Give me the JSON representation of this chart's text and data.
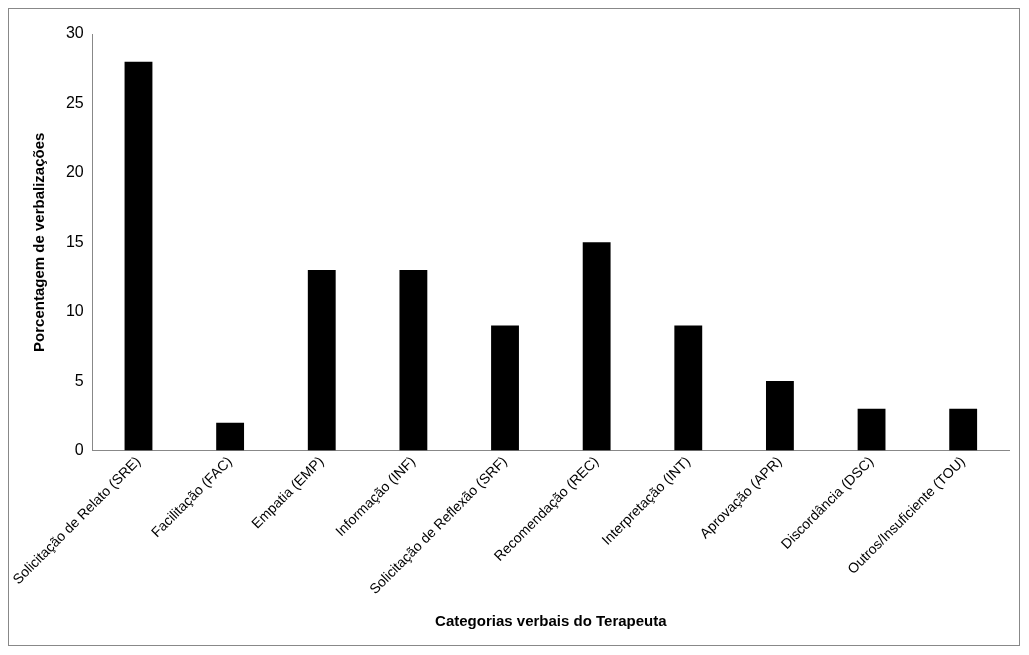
{
  "chart_data": {
    "type": "bar",
    "xlabel": "Categorias verbais do Terapeuta",
    "ylabel": "Porcentagem de verbalizações",
    "categories": [
      "Solicitação de Relato (SRE)",
      "Facilitação (FAC)",
      "Empatia (EMP)",
      "Informação (INF)",
      "Solicitação de Reflexão (SRF)",
      "Recomendação (REC)",
      "Interpretação (INT)",
      "Aprovação (APR)",
      "Discordância (DSC)",
      "Outros/Insuficiente (TOU)"
    ],
    "values": [
      28,
      2,
      13,
      13,
      9,
      15,
      9,
      5,
      3,
      3
    ],
    "color": "#000000",
    "ylim": [
      0,
      30
    ],
    "yticks": [
      0,
      5,
      10,
      15,
      20,
      25,
      30
    ],
    "grid": false,
    "legend": false
  }
}
